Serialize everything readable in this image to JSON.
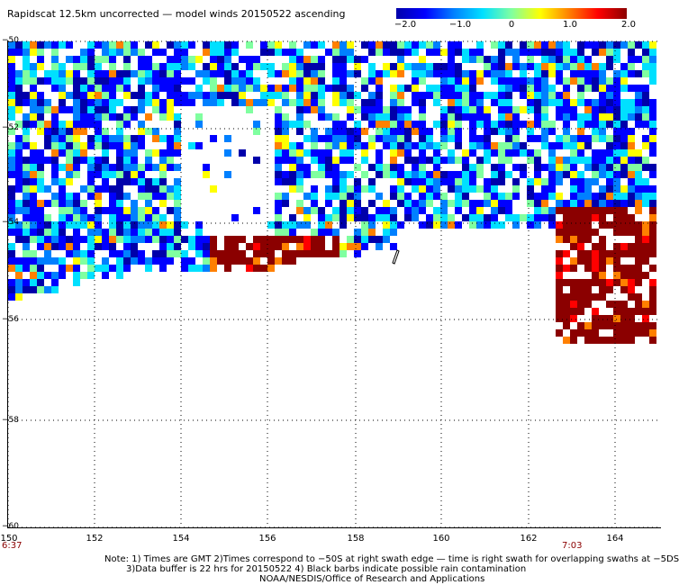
{
  "title": "Rapidscat 12.5km uncorrected — model winds 20150522 ascending",
  "colorbar": {
    "labels": [
      "−2.0",
      "−1.0",
      "0",
      "1.0",
      "2.0"
    ],
    "min": -2.0,
    "max": 2.0,
    "colors": [
      "#0000aa",
      "#0000ff",
      "#0080ff",
      "#00e0ff",
      "#80ffa0",
      "#ffff00",
      "#ff8000",
      "#ff0000",
      "#8b0000"
    ]
  },
  "axes": {
    "lat_labels": [
      "−50",
      "−52",
      "−54",
      "−56",
      "−58",
      "−60"
    ],
    "lon_labels": [
      "150",
      "152",
      "154",
      "156",
      "158",
      "160",
      "162",
      "164"
    ]
  },
  "times": {
    "start": "6:37",
    "end": "7:03"
  },
  "notes": {
    "line1": "Note: 1) Times are GMT 2)Times correspond to −50S at right swath edge — time is right swath for overlapping swaths at −5DS",
    "line2": "3)Data buffer is 22 hrs for 20150522 4) Black barbs indicate possible rain contamination",
    "line3": "NOAA/NESDIS/Office of Research and Applications"
  }
}
